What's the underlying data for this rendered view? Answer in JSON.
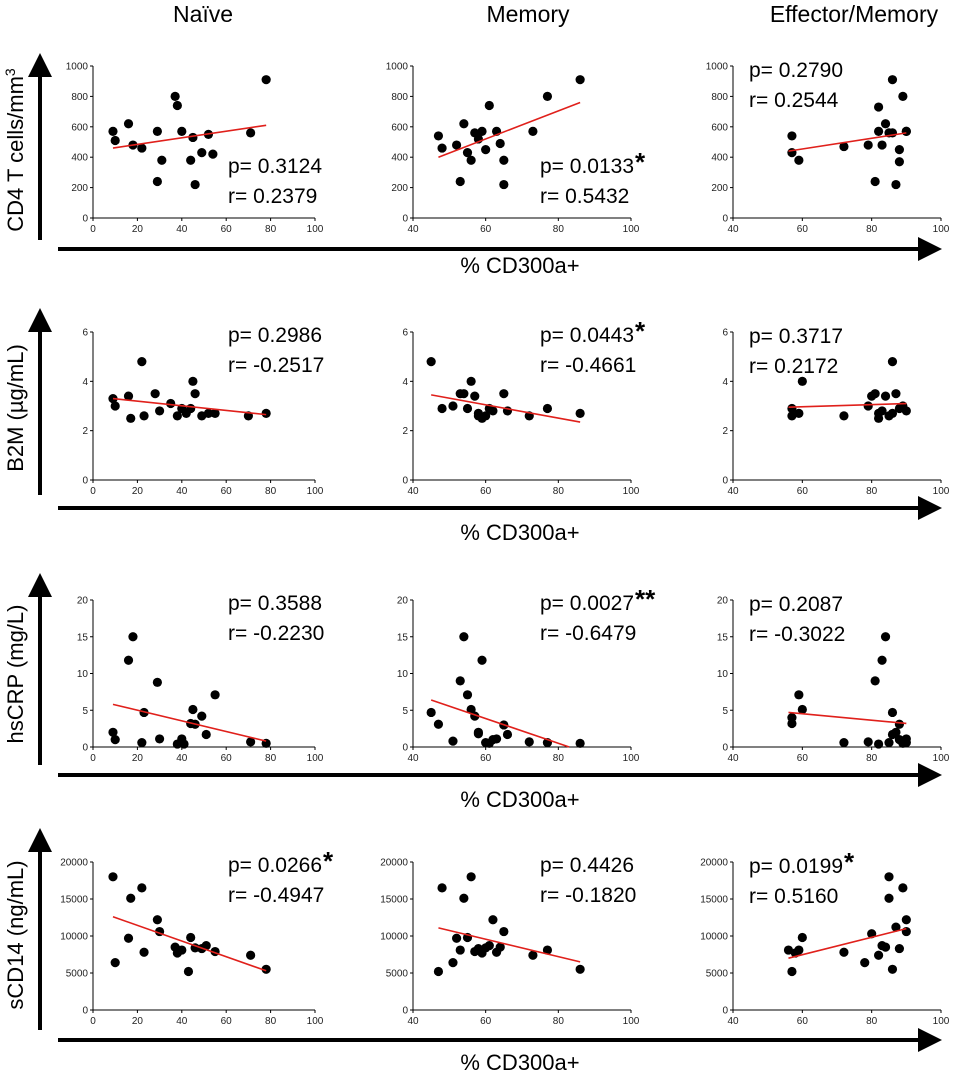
{
  "figure": {
    "columns": [
      "Naïve",
      "Memory",
      "Effector/Memory"
    ],
    "xaxis_label": "% CD300a+",
    "rows": [
      {
        "ylabel_main": "CD4 T cells/mm",
        "ylabel_sup": "3"
      },
      {
        "ylabel": "B2M (µg/mL)"
      },
      {
        "ylabel": "hsCRP (mg/L)"
      },
      {
        "ylabel": "sCD14 (ng/mL)"
      }
    ]
  },
  "chart_data": [
    {
      "id": "cd4-naive",
      "type": "scatter",
      "row": 0,
      "col": 0,
      "xlim": [
        0,
        100
      ],
      "xticks": [
        0,
        20,
        40,
        60,
        80,
        100
      ],
      "ylim": [
        0,
        1000
      ],
      "yticks": [
        0,
        200,
        400,
        600,
        800,
        1000
      ],
      "x": [
        9,
        10,
        18,
        16,
        22,
        29,
        29,
        31,
        37,
        38,
        40,
        44,
        45,
        46,
        49,
        52,
        54,
        71,
        78
      ],
      "y": [
        570,
        510,
        480,
        620,
        460,
        570,
        240,
        380,
        800,
        740,
        570,
        380,
        530,
        220,
        430,
        550,
        420,
        560,
        910
      ],
      "fit": [
        [
          9,
          460
        ],
        [
          78,
          610
        ]
      ],
      "p": "p= 0.3124",
      "r": "r= 0.2379",
      "sig": ""
    },
    {
      "id": "cd4-memory",
      "type": "scatter",
      "row": 0,
      "col": 1,
      "xlim": [
        40,
        100
      ],
      "xticks": [
        40,
        60,
        80,
        100
      ],
      "ylim": [
        0,
        1000
      ],
      "yticks": [
        0,
        200,
        400,
        600,
        800,
        1000
      ],
      "x": [
        47,
        48,
        52,
        53,
        54,
        55,
        56,
        57,
        58,
        59,
        60,
        61,
        63,
        64,
        65,
        65,
        73,
        77,
        86
      ],
      "y": [
        540,
        460,
        480,
        240,
        620,
        430,
        380,
        560,
        520,
        570,
        450,
        740,
        570,
        490,
        380,
        220,
        570,
        800,
        910
      ],
      "fit": [
        [
          47,
          400
        ],
        [
          86,
          760
        ]
      ],
      "p": "p= 0.0133",
      "r": "r= 0.5432",
      "sig": "*"
    },
    {
      "id": "cd4-effmem",
      "type": "scatter",
      "row": 0,
      "col": 2,
      "xlim": [
        40,
        100
      ],
      "xticks": [
        40,
        60,
        80,
        100
      ],
      "ylim": [
        0,
        1000
      ],
      "yticks": [
        0,
        200,
        400,
        600,
        800,
        1000
      ],
      "x": [
        57,
        57,
        59,
        72,
        79,
        81,
        82,
        82,
        83,
        84,
        85,
        86,
        86,
        87,
        88,
        88,
        89,
        90,
        90
      ],
      "y": [
        540,
        430,
        380,
        470,
        480,
        240,
        570,
        730,
        480,
        620,
        560,
        910,
        560,
        220,
        450,
        370,
        800,
        570,
        570
      ],
      "fit": [
        [
          56,
          440
        ],
        [
          90,
          560
        ]
      ],
      "p": "p= 0.2790",
      "r": "r= 0.2544",
      "sig": ""
    },
    {
      "id": "b2m-naive",
      "type": "scatter",
      "row": 1,
      "col": 0,
      "xlim": [
        0,
        100
      ],
      "xticks": [
        0,
        20,
        40,
        60,
        80,
        100
      ],
      "ylim": [
        0,
        6
      ],
      "yticks": [
        0,
        2,
        4,
        6
      ],
      "x": [
        9,
        10,
        16,
        17,
        22,
        23,
        28,
        30,
        35,
        38,
        40,
        42,
        44,
        45,
        46,
        49,
        52,
        55,
        70,
        78
      ],
      "y": [
        3.3,
        3.0,
        3.4,
        2.5,
        4.8,
        2.6,
        3.5,
        2.8,
        3.1,
        2.6,
        2.9,
        2.7,
        2.9,
        4.0,
        3.5,
        2.6,
        2.7,
        2.7,
        2.6,
        2.7
      ],
      "fit": [
        [
          9,
          3.3
        ],
        [
          78,
          2.65
        ]
      ],
      "p": "p= 0.2986",
      "r": "r= -0.2517",
      "sig": ""
    },
    {
      "id": "b2m-memory",
      "type": "scatter",
      "row": 1,
      "col": 1,
      "xlim": [
        40,
        100
      ],
      "xticks": [
        40,
        60,
        80,
        100
      ],
      "ylim": [
        0,
        6
      ],
      "yticks": [
        0,
        2,
        4,
        6
      ],
      "x": [
        45,
        48,
        51,
        53,
        54,
        55,
        56,
        57,
        58,
        58,
        59,
        60,
        61,
        62,
        65,
        66,
        72,
        77,
        86
      ],
      "y": [
        4.8,
        2.9,
        3.0,
        3.5,
        3.5,
        2.9,
        4.0,
        3.4,
        2.6,
        2.7,
        2.5,
        2.6,
        2.9,
        2.8,
        3.5,
        2.8,
        2.6,
        2.9,
        2.7
      ],
      "fit": [
        [
          45,
          3.45
        ],
        [
          86,
          2.35
        ]
      ],
      "p": "p= 0.0443",
      "r": "r= -0.4661",
      "sig": "*"
    },
    {
      "id": "b2m-effmem",
      "type": "scatter",
      "row": 1,
      "col": 2,
      "xlim": [
        40,
        100
      ],
      "xticks": [
        40,
        60,
        80,
        100
      ],
      "ylim": [
        0,
        6
      ],
      "yticks": [
        0,
        2,
        4,
        6
      ],
      "x": [
        57,
        57,
        59,
        60,
        72,
        79,
        80,
        81,
        82,
        82,
        83,
        84,
        85,
        86,
        86,
        87,
        88,
        89,
        90
      ],
      "y": [
        2.9,
        2.6,
        2.7,
        4.0,
        2.6,
        3.0,
        3.4,
        3.5,
        2.7,
        2.5,
        2.8,
        3.4,
        2.6,
        4.8,
        2.7,
        3.5,
        2.9,
        3.0,
        2.8
      ],
      "fit": [
        [
          56,
          2.95
        ],
        [
          90,
          3.1
        ]
      ],
      "p": "p= 0.3717",
      "r": "r= 0.2172",
      "sig": ""
    },
    {
      "id": "hscrp-naive",
      "type": "scatter",
      "row": 2,
      "col": 0,
      "xlim": [
        0,
        100
      ],
      "xticks": [
        0,
        20,
        40,
        60,
        80,
        100
      ],
      "ylim": [
        0,
        20
      ],
      "yticks": [
        0,
        5,
        10,
        15,
        20
      ],
      "x": [
        9,
        10,
        16,
        18,
        22,
        23,
        29,
        30,
        38,
        40,
        41,
        44,
        45,
        46,
        49,
        51,
        55,
        71,
        78
      ],
      "y": [
        2.0,
        1.0,
        11.8,
        15.0,
        0.6,
        4.7,
        8.8,
        1.1,
        0.4,
        1.1,
        0.4,
        3.2,
        5.1,
        3.1,
        4.2,
        1.7,
        7.1,
        0.7,
        0.5
      ],
      "fit": [
        [
          9,
          5.8
        ],
        [
          78,
          0.8
        ]
      ],
      "p": "p= 0.3588",
      "r": "r= -0.2230",
      "sig": ""
    },
    {
      "id": "hscrp-memory",
      "type": "scatter",
      "row": 2,
      "col": 1,
      "xlim": [
        40,
        100
      ],
      "xticks": [
        40,
        60,
        80,
        100
      ],
      "ylim": [
        0,
        20
      ],
      "yticks": [
        0,
        5,
        10,
        15,
        20
      ],
      "x": [
        45,
        47,
        51,
        53,
        54,
        55,
        56,
        57,
        58,
        58,
        59,
        60,
        61,
        62,
        63,
        65,
        66,
        72,
        77,
        86
      ],
      "y": [
        4.7,
        3.1,
        0.8,
        9.0,
        15.0,
        7.1,
        5.1,
        4.2,
        2.0,
        1.8,
        11.8,
        0.6,
        0.5,
        1.0,
        1.1,
        3.0,
        1.7,
        0.7,
        0.6,
        0.5
      ],
      "fit": [
        [
          45,
          6.4
        ],
        [
          83,
          0
        ]
      ],
      "p": "p= 0.0027",
      "r": "r= -0.6479",
      "sig": "**"
    },
    {
      "id": "hscrp-effmem",
      "type": "scatter",
      "row": 2,
      "col": 2,
      "xlim": [
        40,
        100
      ],
      "xticks": [
        40,
        60,
        80,
        100
      ],
      "ylim": [
        0,
        20
      ],
      "yticks": [
        0,
        5,
        10,
        15,
        20
      ],
      "x": [
        57,
        57,
        59,
        60,
        72,
        79,
        81,
        82,
        83,
        84,
        85,
        86,
        86,
        87,
        88,
        88,
        89,
        90,
        90
      ],
      "y": [
        4.0,
        3.2,
        7.1,
        5.1,
        0.6,
        0.7,
        9.0,
        0.4,
        11.8,
        15.0,
        0.6,
        4.7,
        1.7,
        2.0,
        1.0,
        3.1,
        0.5,
        0.6,
        1.1
      ],
      "fit": [
        [
          56,
          4.7
        ],
        [
          90,
          3.2
        ]
      ],
      "p": "p= 0.2087",
      "r": "r= -0.3022",
      "sig": ""
    },
    {
      "id": "scd14-naive",
      "type": "scatter",
      "row": 3,
      "col": 0,
      "xlim": [
        0,
        100
      ],
      "xticks": [
        0,
        20,
        40,
        60,
        80,
        100
      ],
      "ylim": [
        0,
        20000
      ],
      "yticks": [
        0,
        5000,
        10000,
        15000,
        20000
      ],
      "x": [
        9,
        10,
        16,
        17,
        22,
        23,
        29,
        30,
        37,
        38,
        40,
        43,
        44,
        46,
        49,
        51,
        55,
        71,
        78
      ],
      "y": [
        18000,
        6400,
        9700,
        15100,
        16500,
        7800,
        12200,
        10600,
        8500,
        7700,
        8100,
        5200,
        9800,
        8400,
        8300,
        8700,
        7900,
        7400,
        5500
      ],
      "fit": [
        [
          9,
          12600
        ],
        [
          78,
          5300
        ]
      ],
      "p": "p= 0.0266",
      "r": "r= -0.4947",
      "sig": "*"
    },
    {
      "id": "scd14-memory",
      "type": "scatter",
      "row": 3,
      "col": 1,
      "xlim": [
        40,
        100
      ],
      "xticks": [
        40,
        60,
        80,
        100
      ],
      "ylim": [
        0,
        20000
      ],
      "yticks": [
        0,
        5000,
        10000,
        15000,
        20000
      ],
      "x": [
        47,
        48,
        51,
        52,
        53,
        54,
        55,
        56,
        57,
        58,
        59,
        60,
        61,
        62,
        63,
        64,
        65,
        73,
        77,
        86
      ],
      "y": [
        5200,
        16500,
        6400,
        9700,
        8100,
        15100,
        9800,
        18000,
        7900,
        8300,
        7700,
        8400,
        8700,
        12200,
        7800,
        8500,
        10600,
        7400,
        8100,
        5500
      ],
      "fit": [
        [
          47,
          11100
        ],
        [
          86,
          6500
        ]
      ],
      "p": "p= 0.4426",
      "r": "r= -0.1820",
      "sig": ""
    },
    {
      "id": "scd14-effmem",
      "type": "scatter",
      "row": 3,
      "col": 2,
      "xlim": [
        40,
        100
      ],
      "xticks": [
        40,
        60,
        80,
        100
      ],
      "ylim": [
        0,
        20000
      ],
      "yticks": [
        0,
        5000,
        10000,
        15000,
        20000
      ],
      "x": [
        56,
        57,
        58,
        59,
        60,
        72,
        78,
        80,
        82,
        83,
        84,
        85,
        85,
        86,
        87,
        88,
        89,
        90,
        90
      ],
      "y": [
        8100,
        5200,
        7700,
        8100,
        9800,
        7800,
        6400,
        10300,
        7400,
        8700,
        8500,
        18000,
        15100,
        5500,
        11200,
        8300,
        16500,
        12200,
        10600
      ],
      "fit": [
        [
          56,
          7000
        ],
        [
          90,
          11000
        ]
      ],
      "p": "p= 0.0199",
      "r": "r= 0.5160",
      "sig": "*"
    }
  ]
}
